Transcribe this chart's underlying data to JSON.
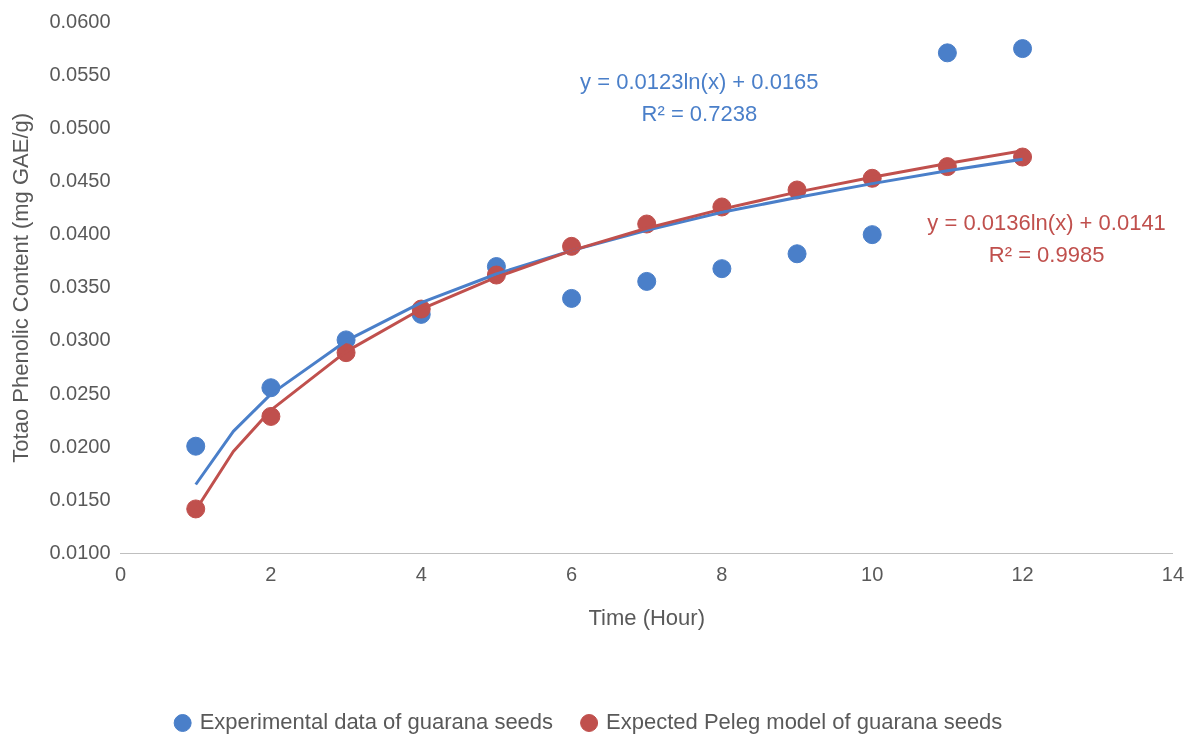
{
  "chart_data": {
    "type": "scatter",
    "xlabel": "Time (Hour)",
    "ylabel": "Totao Phenolic Content (mg GAE/g)",
    "xlim": [
      0,
      14
    ],
    "xticks": [
      0,
      2,
      4,
      6,
      8,
      10,
      12,
      14
    ],
    "ylim": [
      0.01,
      0.06
    ],
    "yticks": [
      {
        "value": 0.01,
        "label": "0.0100"
      },
      {
        "value": 0.015,
        "label": "0.0150"
      },
      {
        "value": 0.02,
        "label": "0.0200"
      },
      {
        "value": 0.025,
        "label": "0.0250"
      },
      {
        "value": 0.03,
        "label": "0.0300"
      },
      {
        "value": 0.035,
        "label": "0.0350"
      },
      {
        "value": 0.04,
        "label": "0.0400"
      },
      {
        "value": 0.045,
        "label": "0.0450"
      },
      {
        "value": 0.05,
        "label": "0.0500"
      },
      {
        "value": 0.055,
        "label": "0.0550"
      },
      {
        "value": 0.06,
        "label": "0.0600"
      }
    ],
    "x": [
      1,
      2,
      3,
      4,
      5,
      6,
      7,
      8,
      9,
      10,
      11,
      12
    ],
    "series": [
      {
        "name": "Experimental data of guarana seeds",
        "marker": "circle",
        "color": "#4a7fc9",
        "values": [
          0.0201,
          0.0256,
          0.0301,
          0.0325,
          0.037,
          0.034,
          0.0356,
          0.0368,
          0.0382,
          0.04,
          0.0571,
          0.0575
        ]
      },
      {
        "name": "Expected Peleg model of guarana seeds",
        "marker": "circle",
        "color": "#c0504d",
        "values": [
          0.0142,
          0.0229,
          0.0289,
          0.033,
          0.0362,
          0.0389,
          0.041,
          0.0426,
          0.0442,
          0.0453,
          0.0464,
          0.0473
        ]
      },
      {
        "type": "line",
        "color": "#4a7fc9",
        "x": [
          1,
          1.5,
          2,
          3,
          4,
          5,
          6,
          7,
          8,
          9,
          10,
          11,
          12
        ],
        "values": [
          0.0165,
          0.0215,
          0.025,
          0.03,
          0.0336,
          0.0363,
          0.0385,
          0.0404,
          0.0421,
          0.0435,
          0.0448,
          0.046,
          0.0471
        ]
      },
      {
        "type": "line",
        "color": "#c0504d",
        "x": [
          1,
          1.5,
          2,
          3,
          4,
          5,
          6,
          7,
          8,
          9,
          10,
          11,
          12
        ],
        "values": [
          0.0141,
          0.0196,
          0.0235,
          0.029,
          0.033,
          0.036,
          0.0385,
          0.0406,
          0.0424,
          0.044,
          0.0454,
          0.0467,
          0.0479
        ]
      }
    ],
    "annotations": [
      "y = 0.0123ln(x) + 0.0165",
      "R² = 0.7238",
      "y = 0.0136ln(x) + 0.0141",
      "R² = 0.9985"
    ],
    "grid": false,
    "legend": "bottom"
  }
}
